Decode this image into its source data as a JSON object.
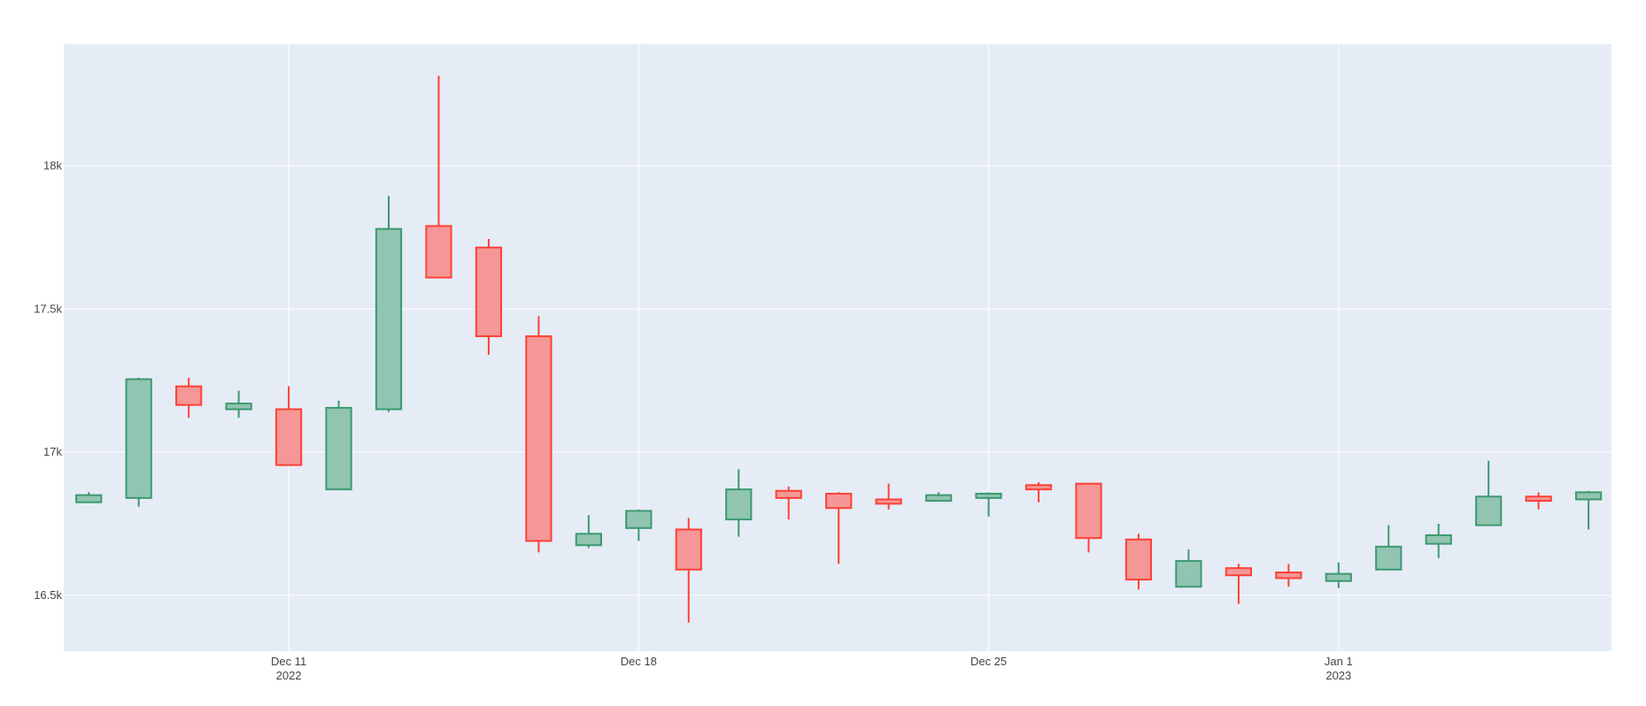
{
  "chart_data": {
    "type": "candlestick",
    "title": "",
    "xlabel": "",
    "ylabel": "",
    "grid": true,
    "colors": {
      "background": "#e5ecf6",
      "grid": "#ffffff",
      "increasing_line": "#3d9970",
      "increasing_fill": "#91c4b1",
      "decreasing_line": "#ff4136",
      "decreasing_fill": "#f59796"
    },
    "x_ticks": [
      {
        "date": "2022-12-11",
        "label": "Dec 11",
        "sublabel": "2022"
      },
      {
        "date": "2022-12-18",
        "label": "Dec 18",
        "sublabel": ""
      },
      {
        "date": "2022-12-25",
        "label": "Dec 25",
        "sublabel": ""
      },
      {
        "date": "2023-01-01",
        "label": "Jan 1",
        "sublabel": "2023"
      }
    ],
    "y_ticks": [
      {
        "value": 16500,
        "label": "16.5k"
      },
      {
        "value": 17000,
        "label": "17k"
      },
      {
        "value": 17500,
        "label": "17.5k"
      },
      {
        "value": 18000,
        "label": "18k"
      }
    ],
    "xlim": [
      "2022-12-06 12:00",
      "2023-01-06 11:00"
    ],
    "ylim": [
      16305,
      18425
    ],
    "candles": [
      {
        "date": "2022-12-07",
        "open": 16825,
        "high": 16860,
        "low": 16825,
        "close": 16850
      },
      {
        "date": "2022-12-08",
        "open": 16840,
        "high": 17260,
        "low": 16810,
        "close": 17255
      },
      {
        "date": "2022-12-09",
        "open": 17230,
        "high": 17260,
        "low": 17120,
        "close": 17165
      },
      {
        "date": "2022-12-10",
        "open": 17150,
        "high": 17215,
        "low": 17120,
        "close": 17170
      },
      {
        "date": "2022-12-11",
        "open": 17150,
        "high": 17230,
        "low": 16955,
        "close": 16955
      },
      {
        "date": "2022-12-12",
        "open": 16870,
        "high": 17180,
        "low": 16870,
        "close": 17155
      },
      {
        "date": "2022-12-13",
        "open": 17150,
        "high": 17895,
        "low": 17140,
        "close": 17780
      },
      {
        "date": "2022-12-14",
        "open": 17790,
        "high": 18315,
        "low": 17610,
        "close": 17610
      },
      {
        "date": "2022-12-15",
        "open": 17715,
        "high": 17745,
        "low": 17340,
        "close": 17405
      },
      {
        "date": "2022-12-16",
        "open": 17405,
        "high": 17475,
        "low": 16650,
        "close": 16690
      },
      {
        "date": "2022-12-17",
        "open": 16675,
        "high": 16780,
        "low": 16665,
        "close": 16715
      },
      {
        "date": "2022-12-18",
        "open": 16735,
        "high": 16800,
        "low": 16690,
        "close": 16795
      },
      {
        "date": "2022-12-19",
        "open": 16730,
        "high": 16770,
        "low": 16405,
        "close": 16590
      },
      {
        "date": "2022-12-20",
        "open": 16765,
        "high": 16940,
        "low": 16705,
        "close": 16870
      },
      {
        "date": "2022-12-21",
        "open": 16865,
        "high": 16880,
        "low": 16765,
        "close": 16840
      },
      {
        "date": "2022-12-22",
        "open": 16855,
        "high": 16860,
        "low": 16610,
        "close": 16805
      },
      {
        "date": "2022-12-23",
        "open": 16835,
        "high": 16890,
        "low": 16800,
        "close": 16820
      },
      {
        "date": "2022-12-24",
        "open": 16830,
        "high": 16860,
        "low": 16830,
        "close": 16850
      },
      {
        "date": "2022-12-25",
        "open": 16840,
        "high": 16860,
        "low": 16775,
        "close": 16855
      },
      {
        "date": "2022-12-26",
        "open": 16885,
        "high": 16895,
        "low": 16825,
        "close": 16870
      },
      {
        "date": "2022-12-27",
        "open": 16890,
        "high": 16890,
        "low": 16650,
        "close": 16700
      },
      {
        "date": "2022-12-28",
        "open": 16695,
        "high": 16715,
        "low": 16520,
        "close": 16555
      },
      {
        "date": "2022-12-29",
        "open": 16530,
        "high": 16660,
        "low": 16530,
        "close": 16620
      },
      {
        "date": "2022-12-30",
        "open": 16595,
        "high": 16610,
        "low": 16470,
        "close": 16570
      },
      {
        "date": "2022-12-31",
        "open": 16580,
        "high": 16610,
        "low": 16530,
        "close": 16560
      },
      {
        "date": "2023-01-01",
        "open": 16550,
        "high": 16615,
        "low": 16525,
        "close": 16575
      },
      {
        "date": "2023-01-02",
        "open": 16590,
        "high": 16745,
        "low": 16590,
        "close": 16670
      },
      {
        "date": "2023-01-03",
        "open": 16680,
        "high": 16750,
        "low": 16630,
        "close": 16710
      },
      {
        "date": "2023-01-04",
        "open": 16745,
        "high": 16970,
        "low": 16745,
        "close": 16845
      },
      {
        "date": "2023-01-05",
        "open": 16845,
        "high": 16860,
        "low": 16800,
        "close": 16830
      },
      {
        "date": "2023-01-06",
        "open": 16835,
        "high": 16865,
        "low": 16730,
        "close": 16860
      }
    ]
  }
}
